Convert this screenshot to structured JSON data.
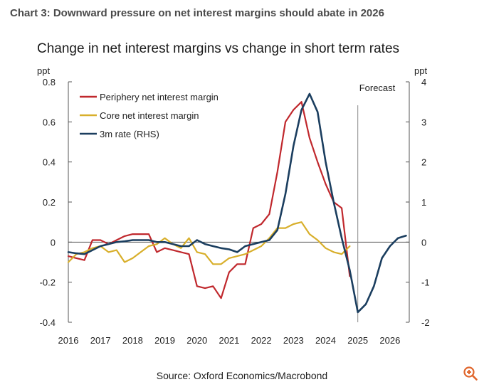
{
  "header": {
    "chart_number": "Chart 3: Downward pressure on net interest margins should abate in 2026"
  },
  "footer": {
    "source": "Source: Oxford Economics/Macrobond",
    "zoom_icon": "zoom-in-icon"
  },
  "colors": {
    "periphery": "#C0282D",
    "core": "#D8AF2B",
    "rate": "#1B3E5F",
    "axis": "#555555",
    "forecast_line": "#888888"
  },
  "chart_data": {
    "type": "line",
    "title": "Change in net interest margins vs change in short term rates",
    "ylabel_left": "ppt",
    "ylabel_right": "ppt",
    "ylim_left": [
      -0.4,
      0.8
    ],
    "ylim_right": [
      -2,
      4
    ],
    "xlim": [
      2016,
      2026.6
    ],
    "x_ticks": [
      "2016",
      "2017",
      "2018",
      "2019",
      "2020",
      "2021",
      "2022",
      "2023",
      "2024",
      "2025",
      "2026"
    ],
    "x_tick_values": [
      2016,
      2017,
      2018,
      2019,
      2020,
      2021,
      2022,
      2023,
      2024,
      2025,
      2026
    ],
    "y_ticks_left": [
      "0.8",
      "0.6",
      "0.4",
      "0.2",
      "0",
      "-0.2",
      "-0.4"
    ],
    "y_tick_values_left": [
      0.8,
      0.6,
      0.4,
      0.2,
      0,
      -0.2,
      -0.4
    ],
    "y_ticks_right": [
      "4",
      "3",
      "2",
      "1",
      "0",
      "-1",
      "-2"
    ],
    "y_tick_values_right": [
      4,
      3,
      2,
      1,
      0,
      -1,
      -2
    ],
    "annotation": {
      "text": "Forecast",
      "x": 2025
    },
    "series": [
      {
        "name": "Periphery net interest margin",
        "axis": "left",
        "x": [
          2016.0,
          2016.25,
          2016.5,
          2016.75,
          2017.0,
          2017.25,
          2017.5,
          2017.75,
          2018.0,
          2018.25,
          2018.5,
          2018.75,
          2019.0,
          2019.25,
          2019.5,
          2019.75,
          2020.0,
          2020.25,
          2020.5,
          2020.75,
          2021.0,
          2021.25,
          2021.5,
          2021.75,
          2022.0,
          2022.25,
          2022.5,
          2022.75,
          2023.0,
          2023.25,
          2023.5,
          2023.75,
          2024.0,
          2024.25,
          2024.5,
          2024.75
        ],
        "values": [
          -0.07,
          -0.08,
          -0.09,
          0.01,
          0.01,
          -0.01,
          0.01,
          0.03,
          0.04,
          0.04,
          0.04,
          -0.05,
          -0.03,
          -0.04,
          -0.05,
          -0.06,
          -0.22,
          -0.23,
          -0.22,
          -0.28,
          -0.15,
          -0.11,
          -0.11,
          0.07,
          0.09,
          0.14,
          0.35,
          0.6,
          0.66,
          0.7,
          0.52,
          0.4,
          0.29,
          0.2,
          0.17,
          -0.17
        ]
      },
      {
        "name": "Core net interest margin",
        "axis": "left",
        "x": [
          2016.0,
          2016.25,
          2016.5,
          2016.75,
          2017.0,
          2017.25,
          2017.5,
          2017.75,
          2018.0,
          2018.25,
          2018.5,
          2018.75,
          2019.0,
          2019.25,
          2019.5,
          2019.75,
          2020.0,
          2020.25,
          2020.5,
          2020.75,
          2021.0,
          2021.25,
          2021.5,
          2021.75,
          2022.0,
          2022.25,
          2022.5,
          2022.75,
          2023.0,
          2023.25,
          2023.5,
          2023.75,
          2024.0,
          2024.25,
          2024.5,
          2024.75
        ],
        "values": [
          -0.1,
          -0.06,
          -0.05,
          -0.03,
          -0.02,
          -0.05,
          -0.04,
          -0.1,
          -0.08,
          -0.05,
          -0.02,
          -0.01,
          0.02,
          -0.01,
          -0.03,
          0.02,
          -0.05,
          -0.06,
          -0.11,
          -0.11,
          -0.08,
          -0.07,
          -0.06,
          -0.04,
          -0.02,
          0.02,
          0.07,
          0.07,
          0.09,
          0.1,
          0.04,
          0.01,
          -0.03,
          -0.05,
          -0.06,
          -0.02
        ]
      },
      {
        "name": "3m rate (RHS)",
        "axis": "right",
        "x": [
          2016.0,
          2016.25,
          2016.5,
          2016.75,
          2017.0,
          2017.25,
          2017.5,
          2017.75,
          2018.0,
          2018.25,
          2018.5,
          2018.75,
          2019.0,
          2019.25,
          2019.5,
          2019.75,
          2020.0,
          2020.25,
          2020.5,
          2020.75,
          2021.0,
          2021.25,
          2021.5,
          2021.75,
          2022.0,
          2022.25,
          2022.5,
          2022.75,
          2023.0,
          2023.25,
          2023.5,
          2023.75,
          2024.0,
          2024.25,
          2024.5,
          2024.75,
          2025.0,
          2025.25,
          2025.5,
          2025.75,
          2026.0,
          2026.25,
          2026.5
        ],
        "values": [
          -0.25,
          -0.28,
          -0.3,
          -0.2,
          -0.1,
          -0.05,
          0.0,
          0.02,
          0.05,
          0.05,
          0.05,
          0.0,
          0.0,
          -0.05,
          -0.1,
          -0.1,
          0.05,
          -0.05,
          -0.1,
          -0.15,
          -0.18,
          -0.25,
          -0.1,
          -0.05,
          0.0,
          0.05,
          0.3,
          1.2,
          2.4,
          3.3,
          3.7,
          3.25,
          2.0,
          1.0,
          0.1,
          -0.7,
          -1.75,
          -1.55,
          -1.1,
          -0.4,
          -0.1,
          0.1,
          0.16
        ]
      }
    ],
    "legend": [
      "Periphery net interest margin",
      "Core net interest margin",
      "3m rate (RHS)"
    ]
  }
}
